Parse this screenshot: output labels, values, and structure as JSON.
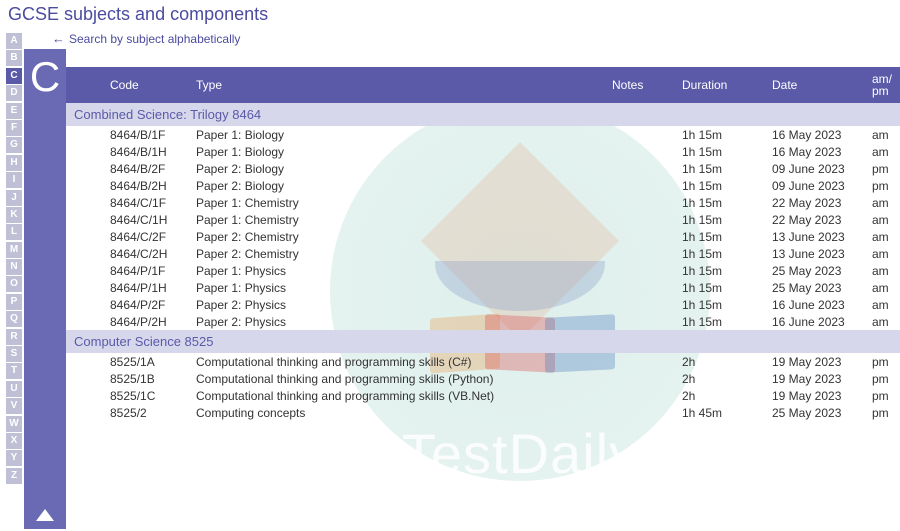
{
  "page_title": "GCSE subjects and components",
  "search_hint": "Search by subject alphabetically",
  "alpha": {
    "letters": [
      "A",
      "B",
      "C",
      "D",
      "E",
      "F",
      "G",
      "H",
      "I",
      "J",
      "K",
      "L",
      "M",
      "N",
      "O",
      "P",
      "Q",
      "R",
      "S",
      "T",
      "U",
      "V",
      "W",
      "X",
      "Y",
      "Z"
    ],
    "active": "C"
  },
  "columns": {
    "code": "Code",
    "type": "Type",
    "notes": "Notes",
    "duration": "Duration",
    "date": "Date",
    "ampm1": "am/",
    "ampm2": "pm"
  },
  "sections": [
    {
      "title": "Combined Science: Trilogy  8464",
      "rows": [
        {
          "code": "8464/B/1F",
          "type": "Paper 1: Biology",
          "notes": "",
          "duration": "1h 15m",
          "date": "16 May 2023",
          "ampm": "am"
        },
        {
          "code": "8464/B/1H",
          "type": "Paper 1: Biology",
          "notes": "",
          "duration": "1h 15m",
          "date": "16 May 2023",
          "ampm": "am"
        },
        {
          "code": "8464/B/2F",
          "type": "Paper 2: Biology",
          "notes": "",
          "duration": "1h 15m",
          "date": "09 June 2023",
          "ampm": "pm"
        },
        {
          "code": "8464/B/2H",
          "type": "Paper 2: Biology",
          "notes": "",
          "duration": "1h 15m",
          "date": "09 June 2023",
          "ampm": "pm"
        },
        {
          "code": "8464/C/1F",
          "type": "Paper 1: Chemistry",
          "notes": "",
          "duration": "1h 15m",
          "date": "22 May 2023",
          "ampm": "am"
        },
        {
          "code": "8464/C/1H",
          "type": "Paper 1: Chemistry",
          "notes": "",
          "duration": "1h 15m",
          "date": "22 May 2023",
          "ampm": "am"
        },
        {
          "code": "8464/C/2F",
          "type": "Paper 2: Chemistry",
          "notes": "",
          "duration": "1h 15m",
          "date": "13 June 2023",
          "ampm": "am"
        },
        {
          "code": "8464/C/2H",
          "type": "Paper 2: Chemistry",
          "notes": "",
          "duration": "1h 15m",
          "date": "13 June 2023",
          "ampm": "am"
        },
        {
          "code": "8464/P/1F",
          "type": "Paper 1: Physics",
          "notes": "",
          "duration": "1h 15m",
          "date": "25 May 2023",
          "ampm": "am"
        },
        {
          "code": "8464/P/1H",
          "type": "Paper 1: Physics",
          "notes": "",
          "duration": "1h 15m",
          "date": "25 May 2023",
          "ampm": "am"
        },
        {
          "code": "8464/P/2F",
          "type": "Paper 2: Physics",
          "notes": "",
          "duration": "1h 15m",
          "date": "16 June 2023",
          "ampm": "am"
        },
        {
          "code": "8464/P/2H",
          "type": "Paper 2: Physics",
          "notes": "",
          "duration": "1h 15m",
          "date": "16 June 2023",
          "ampm": "am"
        }
      ]
    },
    {
      "title": "Computer Science  8525",
      "rows": [
        {
          "code": "8525/1A",
          "type": "Computational thinking and programming skills (C#)",
          "notes": "",
          "duration": "2h",
          "date": "19 May 2023",
          "ampm": "pm"
        },
        {
          "code": "8525/1B",
          "type": "Computational thinking and programming skills (Python)",
          "notes": "",
          "duration": "2h",
          "date": "19 May 2023",
          "ampm": "pm"
        },
        {
          "code": "8525/1C",
          "type": "Computational thinking and programming skills (VB.Net)",
          "notes": "",
          "duration": "2h",
          "date": "19 May 2023",
          "ampm": "pm"
        },
        {
          "code": "8525/2",
          "type": "Computing concepts",
          "notes": "",
          "duration": "1h 45m",
          "date": "25 May 2023",
          "ampm": "pm"
        }
      ]
    }
  ],
  "watermark_text": "TestDaily",
  "colors": {
    "brand": "#5a5aa8",
    "brand_light": "#6a6ab4",
    "section_bg": "#d7d7ec",
    "alpha_inactive": "#bfbfd6"
  }
}
